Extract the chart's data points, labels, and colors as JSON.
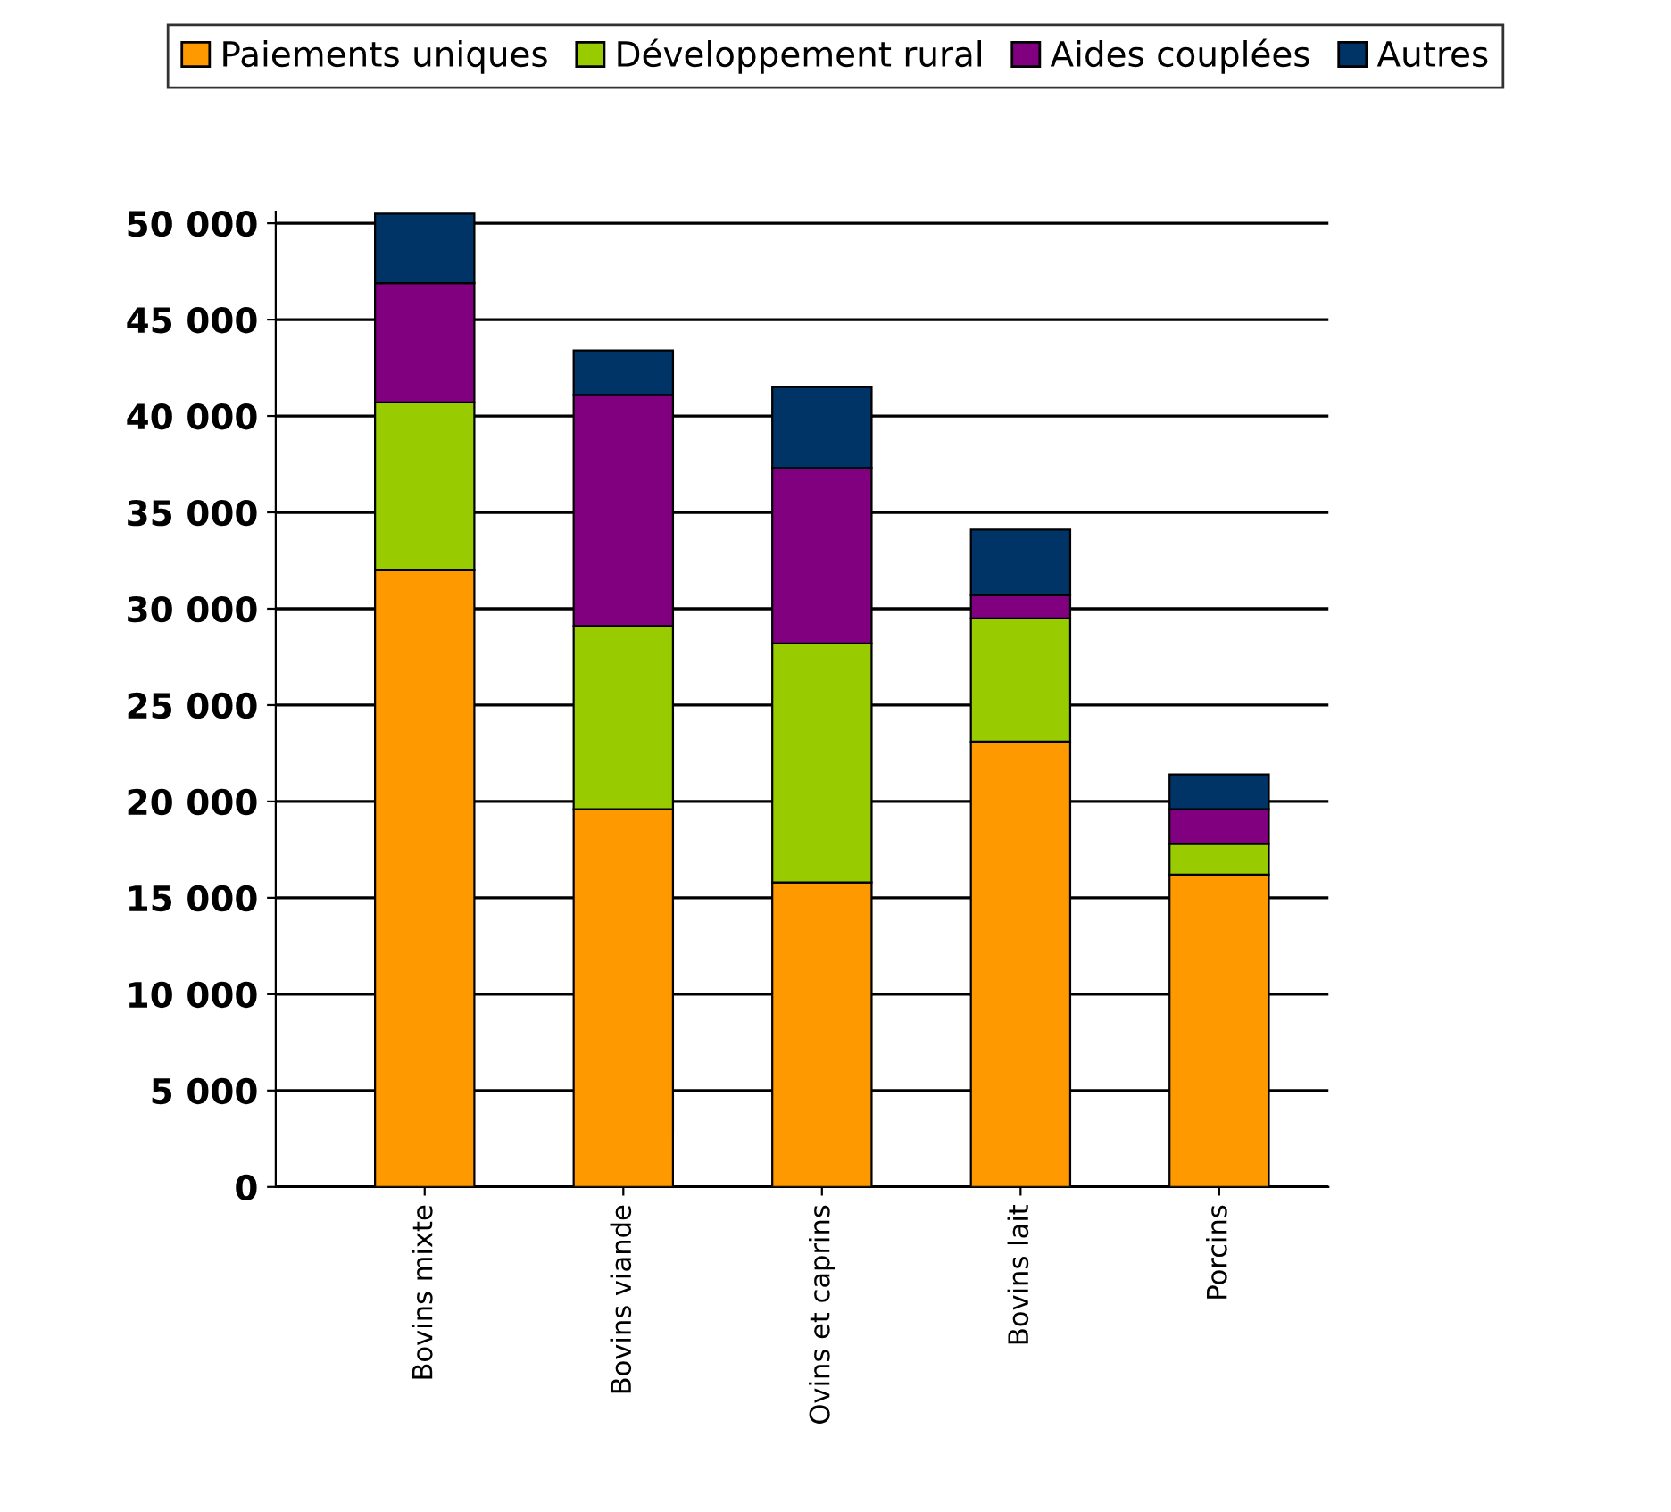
{
  "chart_data": {
    "type": "bar",
    "stacked": true,
    "categories": [
      "Bovins mixte",
      "Bovins viande",
      "Ovins et caprins",
      "Bovins lait",
      "Porcins"
    ],
    "series": [
      {
        "name": "Paiements uniques",
        "color": "#ff9900",
        "values": [
          32000,
          19600,
          15800,
          23100,
          16200
        ]
      },
      {
        "name": "Développement rural",
        "color": "#99cc00",
        "values": [
          8700,
          9500,
          12400,
          6400,
          1600
        ]
      },
      {
        "name": "Aides couplées",
        "color": "#800080",
        "values": [
          6200,
          12000,
          9100,
          1200,
          1800
        ]
      },
      {
        "name": "Autres",
        "color": "#003366",
        "values": [
          3600,
          2300,
          4200,
          3400,
          1800
        ]
      }
    ],
    "ylim": [
      0,
      50600
    ],
    "yticks": [
      {
        "value": 0,
        "label": "0"
      },
      {
        "value": 5000,
        "label": "5 000"
      },
      {
        "value": 10000,
        "label": "10 000"
      },
      {
        "value": 15000,
        "label": "15 000"
      },
      {
        "value": 20000,
        "label": "20 000"
      },
      {
        "value": 25000,
        "label": "25 000"
      },
      {
        "value": 30000,
        "label": "30 000"
      },
      {
        "value": 35000,
        "label": "35 000"
      },
      {
        "value": 40000,
        "label": "40 000"
      },
      {
        "value": 45000,
        "label": "45 000"
      },
      {
        "value": 50000,
        "label": "50 000"
      }
    ],
    "grid": "y",
    "legend": "top"
  }
}
